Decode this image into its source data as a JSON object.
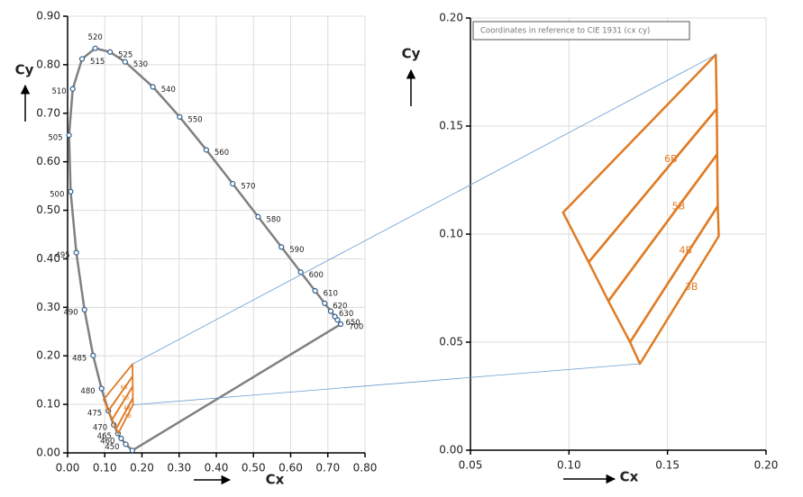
{
  "chart_data": [
    {
      "type": "line",
      "x_label": "Cx",
      "y_label": "Cy",
      "xlim": [
        0,
        0.8
      ],
      "ylim": [
        0,
        0.9
      ],
      "xticks": [
        {
          "value": 0,
          "label": "0.00"
        },
        {
          "value": 0.1,
          "label": "0.10"
        },
        {
          "value": 0.2,
          "label": "0.20"
        },
        {
          "value": 0.3,
          "label": "0.30"
        },
        {
          "value": 0.4,
          "label": "0.40"
        },
        {
          "value": 0.5,
          "label": "0.50"
        },
        {
          "value": 0.6,
          "label": "0.60"
        },
        {
          "value": 0.7,
          "label": "0.70"
        },
        {
          "value": 0.8,
          "label": "0.80"
        }
      ],
      "yticks": [
        {
          "value": 0,
          "label": "0.00"
        },
        {
          "value": 0.1,
          "label": "0.10"
        },
        {
          "value": 0.2,
          "label": "0.20"
        },
        {
          "value": 0.3,
          "label": "0.30"
        },
        {
          "value": 0.4,
          "label": "0.40"
        },
        {
          "value": 0.5,
          "label": "0.50"
        },
        {
          "value": 0.6,
          "label": "0.60"
        },
        {
          "value": 0.7,
          "label": "0.70"
        },
        {
          "value": 0.8,
          "label": "0.80"
        },
        {
          "value": 0.9,
          "label": "0.90"
        }
      ],
      "grid": true,
      "series": [
        {
          "color": "#808080",
          "marker_color": "#2f5f8f",
          "x": [
            0.1741,
            0.1566,
            0.144,
            0.1355,
            0.1241,
            0.1096,
            0.0913,
            0.0687,
            0.0454,
            0.0235,
            0.0082,
            0.0039,
            0.0139,
            0.0389,
            0.0743,
            0.1142,
            0.1547,
            0.2296,
            0.3016,
            0.3731,
            0.4441,
            0.5125,
            0.5752,
            0.627,
            0.6658,
            0.6915,
            0.7079,
            0.719,
            0.726,
            0.7347
          ],
          "values": [
            0.005,
            0.0177,
            0.0297,
            0.0399,
            0.0578,
            0.0868,
            0.1327,
            0.2007,
            0.295,
            0.4127,
            0.5384,
            0.6548,
            0.7502,
            0.812,
            0.8338,
            0.8262,
            0.8059,
            0.7543,
            0.6923,
            0.6245,
            0.5547,
            0.4866,
            0.4242,
            0.3725,
            0.334,
            0.3083,
            0.292,
            0.2809,
            0.274,
            0.2653
          ],
          "labels": [
            null,
            "450",
            "460",
            "465",
            "470",
            "475",
            "480",
            "485",
            "490",
            "495",
            "500",
            "505",
            "510",
            "515",
            "520",
            "525",
            "530",
            "540",
            "550",
            "560",
            "570",
            "580",
            "590",
            "600",
            "610",
            "620",
            "630",
            null,
            "650",
            "700"
          ]
        }
      ]
    },
    {
      "type": "polygon",
      "annotation": "Coordinates in reference to CIE 1931 (cx cy)",
      "x_label": "Cx",
      "y_label": "Cy",
      "xlim": [
        0.05,
        0.2
      ],
      "ylim": [
        0,
        0.2
      ],
      "xticks": [
        {
          "value": 0.05,
          "label": "0.05"
        },
        {
          "value": 0.1,
          "label": "0.10"
        },
        {
          "value": 0.15,
          "label": "0.15"
        },
        {
          "value": 0.2,
          "label": "0.20"
        }
      ],
      "yticks": [
        {
          "value": 0,
          "label": "0.00"
        },
        {
          "value": 0.05,
          "label": "0.05"
        },
        {
          "value": 0.1,
          "label": "0.10"
        },
        {
          "value": 0.15,
          "label": "0.15"
        },
        {
          "value": 0.2,
          "label": "0.20"
        }
      ],
      "grid": true,
      "color": "#e07b24",
      "regions": [
        {
          "name": "6B",
          "x": [
            0.097,
            0.1745,
            0.175,
            0.11
          ],
          "y": [
            0.11,
            0.183,
            0.158,
            0.087
          ]
        },
        {
          "name": "5B",
          "x": [
            0.11,
            0.175,
            0.1752,
            0.12
          ],
          "y": [
            0.087,
            0.158,
            0.137,
            0.069
          ]
        },
        {
          "name": "4B",
          "x": [
            0.12,
            0.1752,
            0.1755,
            0.131
          ],
          "y": [
            0.069,
            0.137,
            0.113,
            0.05
          ]
        },
        {
          "name": "3B",
          "x": [
            0.131,
            0.1755,
            0.176,
            0.136
          ],
          "y": [
            0.05,
            0.113,
            0.099,
            0.04
          ]
        }
      ]
    }
  ]
}
